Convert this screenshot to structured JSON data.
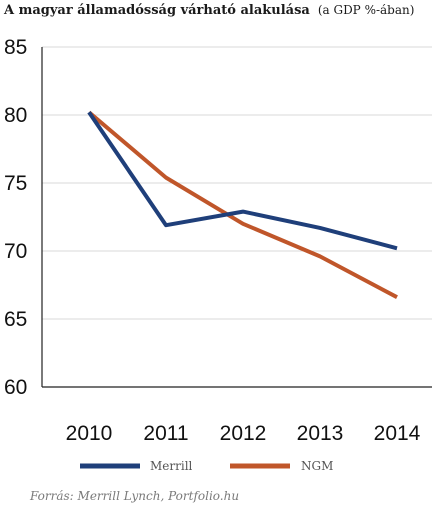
{
  "chart_data": {
    "type": "line",
    "title": "A magyar államadósság várható alakulása",
    "subtitle": "(a GDP %-ában)",
    "categories": [
      "2010",
      "2011",
      "2012",
      "2013",
      "2014"
    ],
    "series": [
      {
        "name": "Merrill",
        "color": "#1f3f7a",
        "values": [
          80.2,
          71.9,
          72.9,
          71.7,
          70.2
        ]
      },
      {
        "name": "NGM",
        "color": "#c0562a",
        "values": [
          80.2,
          75.4,
          72.0,
          69.6,
          66.6
        ]
      }
    ],
    "yticks": [
      "60",
      "65",
      "70",
      "75",
      "80",
      "85"
    ],
    "ylim": [
      60,
      85
    ],
    "grid": true,
    "legend_position": "bottom",
    "source": "Forrás: Merrill Lynch, Portfolio.hu"
  }
}
